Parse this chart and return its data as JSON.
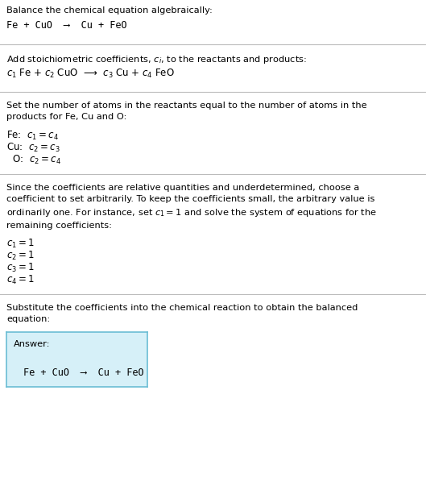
{
  "section1_header": "Balance the chemical equation algebraically:",
  "section1_eq": "Fe + CuO  ⟶  Cu + FeO",
  "section2_header": "Add stoichiometric coefficients, $c_i$, to the reactants and products:",
  "section2_eq": "$c_1$ Fe + $c_2$ CuO  ⟶  $c_3$ Cu + $c_4$ FeO",
  "section3_header": "Set the number of atoms in the reactants equal to the number of atoms in the\nproducts for Fe, Cu and O:",
  "section3_lines": [
    "Fe:  $c_1 = c_4$",
    "Cu:  $c_2 = c_3$",
    "  O:  $c_2 = c_4$"
  ],
  "section4_header": "Since the coefficients are relative quantities and underdetermined, choose a\ncoefficient to set arbitrarily. To keep the coefficients small, the arbitrary value is\nordinarily one. For instance, set $c_1 = 1$ and solve the system of equations for the\nremaining coefficients:",
  "section4_lines": [
    "$c_1 = 1$",
    "$c_2 = 1$",
    "$c_3 = 1$",
    "$c_4 = 1$"
  ],
  "section5_header": "Substitute the coefficients into the chemical reaction to obtain the balanced\nequation:",
  "answer_label": "Answer:",
  "answer_eq": "Fe + CuO  ⟶  Cu + FeO",
  "bg_color": "#ffffff",
  "sep_color": "#bbbbbb",
  "answer_bg": "#d6f0f8",
  "answer_border": "#6bbdd4",
  "text_color": "#000000"
}
